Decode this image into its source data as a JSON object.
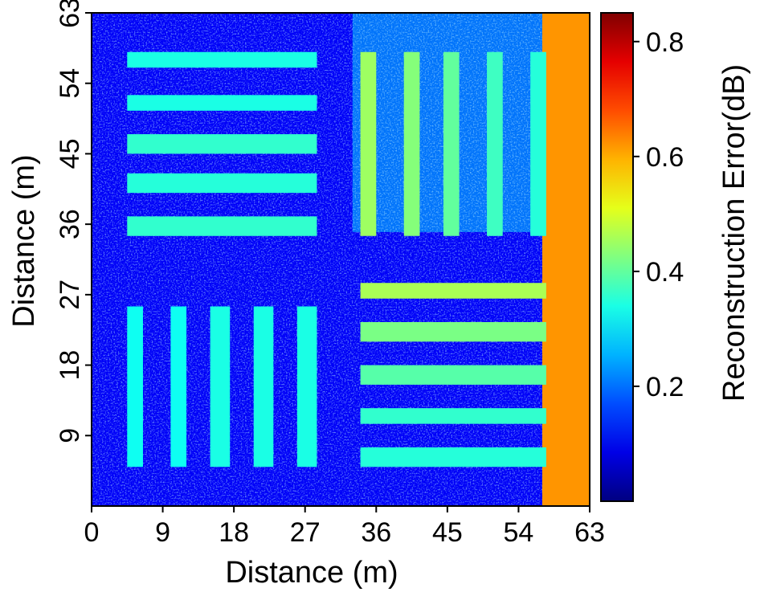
{
  "chart_data": [
    {
      "type": "heatmap",
      "title": "",
      "xlabel": "Distance (m)",
      "ylabel": "Distance (m)",
      "xlim": [
        0,
        63
      ],
      "ylim": [
        0,
        63
      ],
      "x_ticks": [
        0,
        9,
        18,
        27,
        36,
        45,
        54,
        63
      ],
      "y_ticks": [
        9,
        18,
        27,
        36,
        45,
        54,
        63
      ],
      "x_tick_labels": [
        "0",
        "9",
        "18",
        "27",
        "36",
        "45",
        "54",
        "63"
      ],
      "y_tick_labels": [
        "9",
        "18",
        "27",
        "36",
        "45",
        "54",
        "63"
      ],
      "colorbar": {
        "label": "Reconstruction Error(dB)",
        "range": [
          0,
          0.85
        ],
        "ticks": [
          0.2,
          0.4,
          0.6,
          0.8
        ],
        "tick_labels": [
          "0.2",
          "0.4",
          "0.6",
          "0.8"
        ],
        "colormap": "jet"
      },
      "background_error": 0.1,
      "right_edge_band": {
        "x_range": [
          57,
          63
        ],
        "y_range": [
          0,
          63
        ],
        "error": 0.62
      },
      "upper_right_noise_region": {
        "x_range": [
          33,
          57
        ],
        "y_range": [
          35,
          63
        ],
        "error": 0.32
      },
      "bars": [
        {
          "x": [
            4.5,
            28.5
          ],
          "y": [
            56,
            58
          ],
          "error": 0.34
        },
        {
          "x": [
            4.5,
            28.5
          ],
          "y": [
            50.5,
            52.5
          ],
          "error": 0.34
        },
        {
          "x": [
            4.5,
            28.5
          ],
          "y": [
            45,
            47.5
          ],
          "error": 0.36
        },
        {
          "x": [
            4.5,
            28.5
          ],
          "y": [
            40,
            42.5
          ],
          "error": 0.35
        },
        {
          "x": [
            4.5,
            28.5
          ],
          "y": [
            34.5,
            37
          ],
          "error": 0.36
        },
        {
          "x": [
            34,
            36
          ],
          "y": [
            34.5,
            58
          ],
          "error": 0.45
        },
        {
          "x": [
            39.5,
            41.5
          ],
          "y": [
            34.5,
            58
          ],
          "error": 0.43
        },
        {
          "x": [
            44.5,
            46.5
          ],
          "y": [
            34.5,
            58
          ],
          "error": 0.4
        },
        {
          "x": [
            50,
            52
          ],
          "y": [
            34.5,
            58
          ],
          "error": 0.37
        },
        {
          "x": [
            55.5,
            57.5
          ],
          "y": [
            34.5,
            58
          ],
          "error": 0.35
        },
        {
          "x": [
            4.5,
            6.5
          ],
          "y": [
            5,
            25.5
          ],
          "error": 0.33
        },
        {
          "x": [
            10,
            12
          ],
          "y": [
            5,
            25.5
          ],
          "error": 0.33
        },
        {
          "x": [
            15,
            17.5
          ],
          "y": [
            5,
            25.5
          ],
          "error": 0.34
        },
        {
          "x": [
            20.5,
            23
          ],
          "y": [
            5,
            25.5
          ],
          "error": 0.34
        },
        {
          "x": [
            26,
            28.5
          ],
          "y": [
            5,
            25.5
          ],
          "error": 0.34
        },
        {
          "x": [
            34,
            57.5
          ],
          "y": [
            26.5,
            28.5
          ],
          "error": 0.46
        },
        {
          "x": [
            34,
            57.5
          ],
          "y": [
            21,
            23.5
          ],
          "error": 0.42
        },
        {
          "x": [
            34,
            57.5
          ],
          "y": [
            15.5,
            18
          ],
          "error": 0.39
        },
        {
          "x": [
            34,
            57.5
          ],
          "y": [
            10.5,
            12.5
          ],
          "error": 0.36
        },
        {
          "x": [
            34,
            57.5
          ],
          "y": [
            5,
            7.5
          ],
          "error": 0.35
        }
      ]
    }
  ]
}
